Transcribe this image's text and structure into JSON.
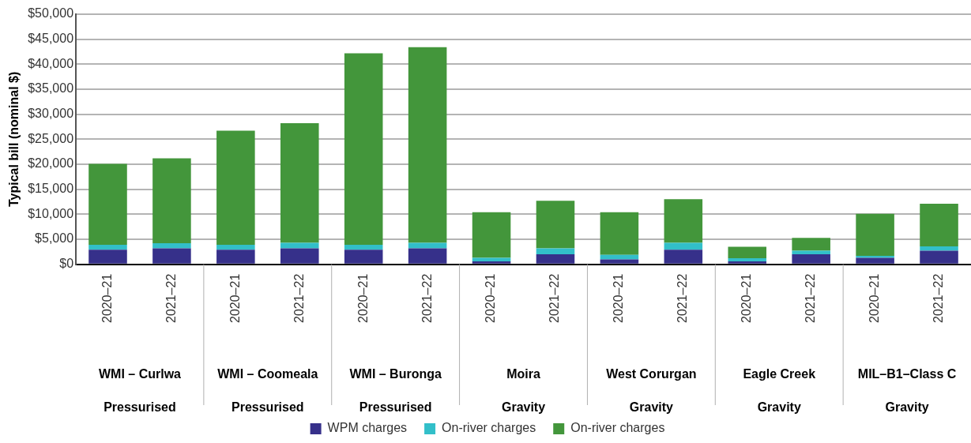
{
  "chart_data": {
    "type": "bar",
    "stacked": true,
    "ylabel": "Typical bill (nominal $)",
    "categories": [
      "2020–21",
      "2021–22",
      "2020–21",
      "2021–22",
      "2020–21",
      "2021–22",
      "2020–21",
      "2021–22",
      "2020–21",
      "2021–22",
      "2020–21",
      "2021–22",
      "2020–21",
      "2021–22"
    ],
    "series": [
      {
        "name": "WPM charges",
        "color": "#36308a",
        "values": [
          2900,
          3200,
          2900,
          3200,
          2900,
          3200,
          600,
          2000,
          1000,
          2900,
          600,
          2000,
          1300,
          2700
        ]
      },
      {
        "name": "On-river charges",
        "color": "#32bfc9",
        "values": [
          1000,
          1000,
          1000,
          1100,
          1000,
          1100,
          700,
          1200,
          900,
          1400,
          600,
          700,
          400,
          900
        ]
      },
      {
        "name": "On-river charges",
        "color": "#43963b",
        "values": [
          16200,
          17000,
          22800,
          23900,
          38300,
          39100,
          9100,
          9500,
          8500,
          8700,
          2300,
          2600,
          8400,
          8500
        ]
      }
    ],
    "ylim": [
      0,
      50000
    ],
    "yticks": [
      {
        "value": 0,
        "label": "$0"
      },
      {
        "value": 5000,
        "label": "$5,000"
      },
      {
        "value": 10000,
        "label": "$10,000"
      },
      {
        "value": 15000,
        "label": "$15,000"
      },
      {
        "value": 20000,
        "label": "$20,000"
      },
      {
        "value": 25000,
        "label": "$25,000"
      },
      {
        "value": 30000,
        "label": "$30,000"
      },
      {
        "value": 35000,
        "label": "$35,000"
      },
      {
        "value": 40000,
        "label": "$40,000"
      },
      {
        "value": 45000,
        "label": "$45,000"
      },
      {
        "value": 50000,
        "label": "$50,000"
      }
    ],
    "grid": "y",
    "legend": "bottom",
    "annotations": [
      "WMI – Curlwa",
      "Pressurised",
      "WMI – Coomeala",
      "Pressurised",
      "WMI – Buronga",
      "Pressurised",
      "Moira",
      "Gravity",
      "West Corurgan",
      "Gravity",
      "Eagle Creek",
      "Gravity",
      "MIL–B1–Class C",
      "Gravity"
    ]
  }
}
